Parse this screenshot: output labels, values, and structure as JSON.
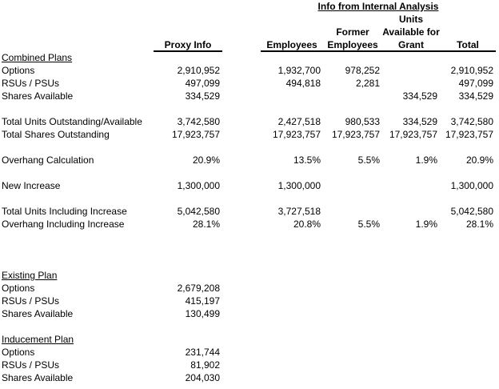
{
  "page": {
    "background": "#ffffff",
    "text_color": "#000000",
    "rule_color": "#000000"
  },
  "table": {
    "group_title": "Info from Internal Analysis",
    "headers": {
      "proxy": "Proxy Info",
      "employees": "Employees",
      "former_line1": "Former",
      "former_line2": "Employees",
      "grant_line1": "Units",
      "grant_line2": "Available for",
      "grant_line3": "Grant",
      "total": "Total"
    },
    "rows": [
      {
        "kind": "section",
        "cells": [
          "Combined Plans",
          "",
          "",
          "",
          "",
          ""
        ]
      },
      {
        "kind": "data",
        "cells": [
          "Options",
          "2,910,952",
          "1,932,700",
          "978,252",
          "",
          "2,910,952"
        ]
      },
      {
        "kind": "data",
        "cells": [
          "RSUs / PSUs",
          "497,099",
          "494,818",
          "2,281",
          "",
          "497,099"
        ]
      },
      {
        "kind": "data",
        "cells": [
          "Shares Available",
          "334,529",
          "",
          "",
          "334,529",
          "334,529"
        ]
      },
      {
        "kind": "blank",
        "cells": [
          "",
          "",
          "",
          "",
          "",
          ""
        ]
      },
      {
        "kind": "data",
        "cells": [
          "Total Units Outstanding/Available",
          "3,742,580",
          "2,427,518",
          "980,533",
          "334,529",
          "3,742,580"
        ]
      },
      {
        "kind": "data",
        "cells": [
          "Total Shares Outstanding",
          "17,923,757",
          "17,923,757",
          "17,923,757",
          "17,923,757",
          "17,923,757"
        ]
      },
      {
        "kind": "blank",
        "cells": [
          "",
          "",
          "",
          "",
          "",
          ""
        ]
      },
      {
        "kind": "data",
        "cells": [
          "Overhang Calculation",
          "20.9%",
          "13.5%",
          "5.5%",
          "1.9%",
          "20.9%"
        ]
      },
      {
        "kind": "blank",
        "cells": [
          "",
          "",
          "",
          "",
          "",
          ""
        ]
      },
      {
        "kind": "data",
        "cells": [
          "New Increase",
          "1,300,000",
          "1,300,000",
          "",
          "",
          "1,300,000"
        ]
      },
      {
        "kind": "blank",
        "cells": [
          "",
          "",
          "",
          "",
          "",
          ""
        ]
      },
      {
        "kind": "data",
        "cells": [
          "Total Units Including Increase",
          "5,042,580",
          "3,727,518",
          "",
          "",
          "5,042,580"
        ]
      },
      {
        "kind": "data",
        "cells": [
          "Overhang Including Increase",
          "28.1%",
          "20.8%",
          "5.5%",
          "1.9%",
          "28.1%"
        ]
      },
      {
        "kind": "blank",
        "cells": [
          "",
          "",
          "",
          "",
          "",
          ""
        ]
      },
      {
        "kind": "blank",
        "cells": [
          "",
          "",
          "",
          "",
          "",
          ""
        ]
      },
      {
        "kind": "blank",
        "cells": [
          "",
          "",
          "",
          "",
          "",
          ""
        ]
      },
      {
        "kind": "section",
        "cells": [
          "Existing Plan",
          "",
          "",
          "",
          "",
          ""
        ]
      },
      {
        "kind": "data",
        "cells": [
          "Options",
          "2,679,208",
          "",
          "",
          "",
          ""
        ]
      },
      {
        "kind": "data",
        "cells": [
          "RSUs / PSUs",
          "415,197",
          "",
          "",
          "",
          ""
        ]
      },
      {
        "kind": "data",
        "cells": [
          "Shares Available",
          "130,499",
          "",
          "",
          "",
          ""
        ]
      },
      {
        "kind": "blank",
        "cells": [
          "",
          "",
          "",
          "",
          "",
          ""
        ]
      },
      {
        "kind": "section",
        "cells": [
          "Inducement Plan",
          "",
          "",
          "",
          "",
          ""
        ]
      },
      {
        "kind": "data",
        "cells": [
          "Options",
          "231,744",
          "",
          "",
          "",
          ""
        ]
      },
      {
        "kind": "data",
        "cells": [
          "RSUs / PSUs",
          "81,902",
          "",
          "",
          "",
          ""
        ]
      },
      {
        "kind": "data",
        "cells": [
          "Shares Available",
          "204,030",
          "",
          "",
          "",
          ""
        ]
      }
    ]
  }
}
